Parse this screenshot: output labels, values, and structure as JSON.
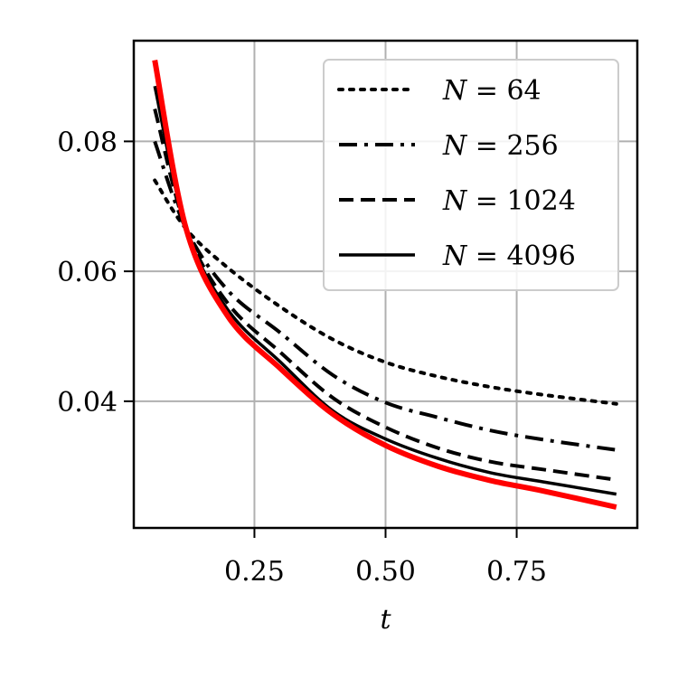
{
  "chart_data": {
    "type": "line",
    "xlabel": "t",
    "ylabel": "",
    "xlim": [
      0.02,
      0.98
    ],
    "ylim": [
      0.0205,
      0.0955
    ],
    "x_ticks": [
      0.25,
      0.5,
      0.75
    ],
    "x_tick_labels": [
      "0.25",
      "0.50",
      "0.75"
    ],
    "y_ticks": [
      0.04,
      0.06,
      0.08
    ],
    "y_tick_labels": [
      "0.04",
      "0.06",
      "0.08"
    ],
    "grid": true,
    "legend_position": "top-right",
    "series": [
      {
        "name": "N = 64",
        "name_var": "N",
        "name_val": "64",
        "style": "dotted",
        "color": "#000000",
        "x": [
          0.06,
          0.12,
          0.2,
          0.3,
          0.4,
          0.5,
          0.6,
          0.7,
          0.8,
          0.94
        ],
        "y": [
          0.074,
          0.0665,
          0.0605,
          0.0545,
          0.0495,
          0.046,
          0.0438,
          0.0422,
          0.041,
          0.0396
        ]
      },
      {
        "name": "N = 256",
        "name_var": "N",
        "name_val": "256",
        "style": "dashdot",
        "color": "#000000",
        "x": [
          0.06,
          0.12,
          0.2,
          0.3,
          0.4,
          0.5,
          0.6,
          0.7,
          0.8,
          0.94
        ],
        "y": [
          0.08,
          0.0665,
          0.057,
          0.0505,
          0.044,
          0.0398,
          0.0375,
          0.0355,
          0.0341,
          0.0325
        ]
      },
      {
        "name": "N = 1024",
        "name_var": "N",
        "name_val": "1024",
        "style": "dashed",
        "color": "#000000",
        "x": [
          0.06,
          0.12,
          0.2,
          0.3,
          0.4,
          0.5,
          0.6,
          0.7,
          0.8,
          0.94
        ],
        "y": [
          0.085,
          0.0665,
          0.055,
          0.0475,
          0.0405,
          0.036,
          0.0328,
          0.0307,
          0.0295,
          0.0279
        ]
      },
      {
        "name": "N = 4096",
        "name_var": "N",
        "name_val": "4096",
        "style": "solid",
        "color": "#000000",
        "x": [
          0.06,
          0.12,
          0.2,
          0.3,
          0.4,
          0.5,
          0.6,
          0.7,
          0.8,
          0.94
        ],
        "y": [
          0.0885,
          0.0665,
          0.054,
          0.046,
          0.0385,
          0.0342,
          0.0312,
          0.029,
          0.0276,
          0.0257
        ]
      },
      {
        "name": "",
        "style": "solid-thick",
        "color": "#ff0000",
        "x": [
          0.06,
          0.12,
          0.2,
          0.3,
          0.4,
          0.5,
          0.6,
          0.7,
          0.8,
          0.94
        ],
        "y": [
          0.0925,
          0.0665,
          0.053,
          0.045,
          0.038,
          0.0332,
          0.03,
          0.0278,
          0.0262,
          0.0237
        ]
      }
    ]
  }
}
